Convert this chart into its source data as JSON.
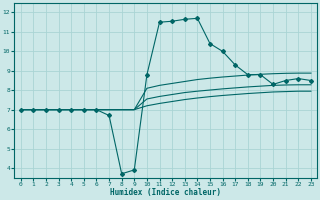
{
  "title": "",
  "xlabel": "Humidex (Indice chaleur)",
  "ylabel": "",
  "bg_color": "#cce8e8",
  "grid_color": "#aad4d4",
  "line_color": "#006666",
  "xlim": [
    -0.5,
    23.5
  ],
  "ylim": [
    3.5,
    12.5
  ],
  "xticks": [
    0,
    1,
    2,
    3,
    4,
    5,
    6,
    7,
    8,
    9,
    10,
    11,
    12,
    13,
    14,
    15,
    16,
    17,
    18,
    19,
    20,
    21,
    22,
    23
  ],
  "yticks": [
    4,
    5,
    6,
    7,
    8,
    9,
    10,
    11,
    12
  ],
  "lines": [
    {
      "x": [
        0,
        1,
        2,
        3,
        4,
        5,
        6,
        7,
        8,
        9,
        10,
        11,
        12,
        13,
        14,
        15,
        16,
        17,
        18,
        19,
        20,
        21,
        22,
        23
      ],
      "y": [
        7,
        7,
        7,
        7,
        7,
        7,
        7,
        6.7,
        3.7,
        3.9,
        8.8,
        11.5,
        11.55,
        11.65,
        11.7,
        10.4,
        10.0,
        9.3,
        8.8,
        8.8,
        8.3,
        8.5,
        8.6,
        8.5
      ],
      "marker": true
    },
    {
      "x": [
        0,
        1,
        2,
        3,
        4,
        5,
        6,
        7,
        8,
        9,
        10,
        11,
        12,
        13,
        14,
        15,
        16,
        17,
        18,
        19,
        20,
        21,
        22,
        23
      ],
      "y": [
        7,
        7,
        7,
        7,
        7,
        7,
        7,
        7,
        7,
        7,
        8.1,
        8.25,
        8.35,
        8.45,
        8.55,
        8.62,
        8.68,
        8.73,
        8.78,
        8.82,
        8.85,
        8.87,
        8.88,
        8.88
      ],
      "marker": false
    },
    {
      "x": [
        0,
        1,
        2,
        3,
        4,
        5,
        6,
        7,
        8,
        9,
        10,
        11,
        12,
        13,
        14,
        15,
        16,
        17,
        18,
        19,
        20,
        21,
        22,
        23
      ],
      "y": [
        7,
        7,
        7,
        7,
        7,
        7,
        7,
        7,
        7,
        7,
        7.55,
        7.68,
        7.78,
        7.88,
        7.95,
        8.01,
        8.07,
        8.12,
        8.17,
        8.21,
        8.25,
        8.27,
        8.28,
        8.28
      ],
      "marker": false
    },
    {
      "x": [
        0,
        1,
        2,
        3,
        4,
        5,
        6,
        7,
        8,
        9,
        10,
        11,
        12,
        13,
        14,
        15,
        16,
        17,
        18,
        19,
        20,
        21,
        22,
        23
      ],
      "y": [
        7,
        7,
        7,
        7,
        7,
        7,
        7,
        7,
        7,
        7,
        7.2,
        7.32,
        7.42,
        7.52,
        7.6,
        7.67,
        7.73,
        7.78,
        7.83,
        7.87,
        7.91,
        7.93,
        7.95,
        7.95
      ],
      "marker": false
    }
  ]
}
